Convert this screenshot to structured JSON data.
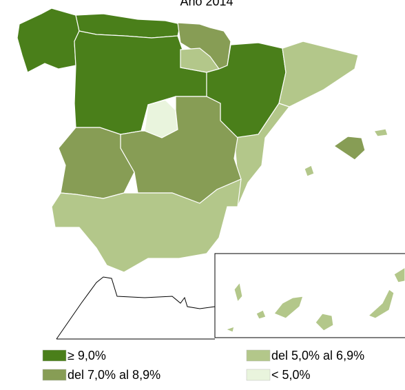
{
  "title": "Año 2014",
  "legend": [
    {
      "label": "≥ 9,0%",
      "color": "#4a7f1a"
    },
    {
      "label": "del 7,0% al 8,9%",
      "color": "#879d55"
    },
    {
      "label": "del 5,0% al 6,9%",
      "color": "#b3c78a"
    },
    {
      "label": "< 5,0%",
      "color": "#e9f4dd"
    }
  ]
}
